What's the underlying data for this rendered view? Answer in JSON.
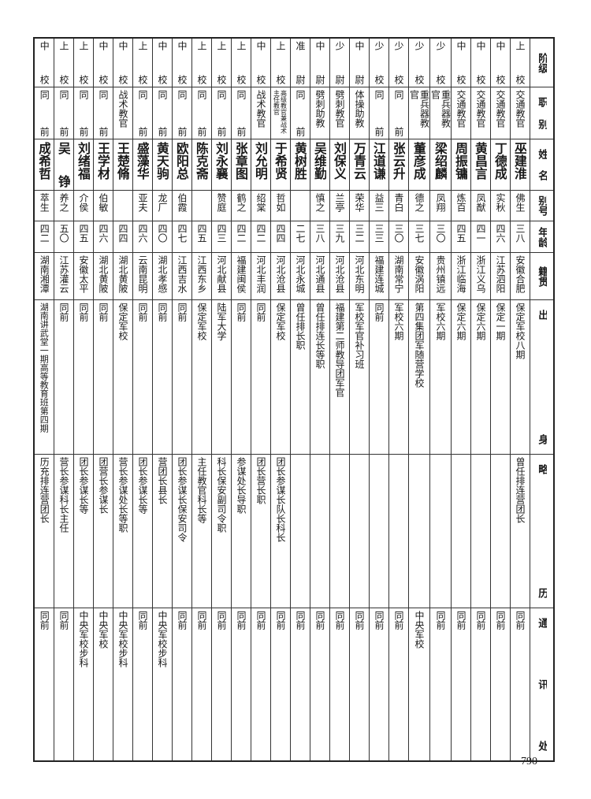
{
  "header": [
    "阶级",
    "职别",
    "姓名",
    "别号",
    "年龄",
    "籍贯",
    "出身",
    "略历",
    "通讯处"
  ],
  "people": [
    {
      "rank": "中校",
      "post": "同前",
      "name": "成希哲",
      "alias": "萃生",
      "age": "四二",
      "native": "湖南湘潭",
      "origin": "湖南讲武堂一期高等教育班第四期",
      "career": "历充排连营团长",
      "contact": "同前"
    },
    {
      "rank": "上校",
      "post": "同前",
      "name": "吴铮",
      "alias": "养之",
      "age": "五〇",
      "native": "江苏灌云",
      "origin": "同前",
      "career": "营长参谋科长主任",
      "contact": "同前"
    },
    {
      "rank": "上校",
      "post": "同前",
      "name": "刘绪福",
      "alias": "介侯",
      "age": "四五",
      "native": "安徽太平",
      "origin": "同前",
      "career": "团长参谋长等",
      "contact": "中央军校步科"
    },
    {
      "rank": "中校",
      "post": "同前",
      "name": "王学材",
      "alias": "伯敏",
      "age": "四六",
      "native": "湖北黄陂",
      "origin": "同前",
      "career": "团营长参谋长",
      "contact": "中央军校"
    },
    {
      "rank": "中校",
      "post": "战术教官",
      "name": "王楚脩",
      "alias": "",
      "age": "四四",
      "native": "湖北黄陂",
      "origin": "保定军校",
      "career": "营长参谋处长等职",
      "contact": "中央军校步科"
    },
    {
      "rank": "上校",
      "post": "同前",
      "name": "盛藻华",
      "alias": "亚夫",
      "age": "四六",
      "native": "云南昆明",
      "origin": "同前",
      "career": "团长参谋长等",
      "contact": "同前"
    },
    {
      "rank": "中校",
      "post": "同前",
      "name": "黄天驹",
      "alias": "龙厂",
      "age": "四〇",
      "native": "湖北孝感",
      "origin": "同前",
      "career": "营团长县长",
      "contact": "中央军校步科"
    },
    {
      "rank": "中校",
      "post": "同前",
      "name": "欧阳总",
      "alias": "伯霞",
      "age": "四七",
      "native": "江西吉水",
      "origin": "同前",
      "career": "团长参谋长保安司令",
      "contact": "同前"
    },
    {
      "rank": "上校",
      "post": "同前",
      "name": "陈克斋",
      "alias": "",
      "age": "四五",
      "native": "江西东乡",
      "origin": "保定军校",
      "career": "主任教官科长等",
      "contact": "同前"
    },
    {
      "rank": "上校",
      "post": "同前",
      "name": "刘永襄",
      "alias": "赞庭",
      "age": "四三",
      "native": "河北献县",
      "origin": "陆军大学",
      "career": "科长保安副司令职",
      "contact": "同前"
    },
    {
      "rank": "上校",
      "post": "同前",
      "name": "张章图",
      "alias": "鹤之",
      "age": "四二",
      "native": "福建闽侯",
      "origin": "同前",
      "career": "参谋处长导职",
      "contact": "同前"
    },
    {
      "rank": "中校",
      "post": "战术教官",
      "name": "刘允明",
      "alias": "绍棠",
      "age": "四二",
      "native": "河北丰润",
      "origin": "同前",
      "career": "团长营长职",
      "contact": "同前"
    },
    {
      "rank": "上校",
      "post": "高级教官兼战术主任教官",
      "name": "于希贤",
      "alias": "哲如",
      "age": "四四",
      "native": "河北沧县",
      "origin": "保定军校",
      "career": "团长参谋长队长科长",
      "contact": "同前"
    },
    {
      "rank": "准尉",
      "post": "同前",
      "name": "黄树胜",
      "alias": "",
      "age": "二七",
      "native": "河北永城",
      "origin": "曾任排长职",
      "career": "",
      "contact": "同前"
    },
    {
      "rank": "中尉",
      "post": "劈刺助教",
      "name": "吴维勤",
      "alias": "慎之",
      "age": "三八",
      "native": "河北通县",
      "origin": "曾任排连长等职",
      "career": "",
      "contact": "同前"
    },
    {
      "rank": "少尉",
      "post": "劈刺教官",
      "name": "刘保义",
      "alias": "兰亭",
      "age": "三九",
      "native": "河北沧县",
      "origin": "福建第二师教导团军官",
      "career": "",
      "contact": "同前"
    },
    {
      "rank": "中尉",
      "post": "体操助教",
      "name": "万青云",
      "alias": "荣华",
      "age": "三二",
      "native": "河北东明",
      "origin": "军校军官补习班",
      "career": "",
      "contact": "同前"
    },
    {
      "rank": "少校",
      "post": "同前",
      "name": "江道谦",
      "alias": "益三",
      "age": "三三",
      "native": "福建连城",
      "origin": "同前",
      "career": "",
      "contact": "同前"
    },
    {
      "rank": "少校",
      "post": "同前",
      "name": "张云升",
      "alias": "青白",
      "age": "三〇",
      "native": "湖南常宁",
      "origin": "军校六期",
      "career": "",
      "contact": "同前"
    },
    {
      "rank": "少校",
      "post": "重兵器教官",
      "name": "董彦成",
      "alias": "德之",
      "age": "三七",
      "native": "安徽涡阳",
      "origin": "第四集团军随营学校",
      "career": "",
      "contact": "中央军校"
    },
    {
      "rank": "少校",
      "post": "重兵器教官",
      "name": "梁绍麟",
      "alias": "凤翔",
      "age": "三〇",
      "native": "贵州镇远",
      "origin": "军校六期",
      "career": "",
      "contact": "同前"
    },
    {
      "rank": "中校",
      "post": "交通教官",
      "name": "周振镛",
      "alias": "炼百",
      "age": "四五",
      "native": "浙江临海",
      "origin": "保定六期",
      "career": "",
      "contact": "同前"
    },
    {
      "rank": "中校",
      "post": "交通教官",
      "name": "黄昌言",
      "alias": "凤猷",
      "age": "四一",
      "native": "浙江义乌",
      "origin": "保定六期",
      "career": "",
      "contact": "同前"
    },
    {
      "rank": "中校",
      "post": "交通教官",
      "name": "丁德成",
      "alias": "实秋",
      "age": "四六",
      "native": "江苏泗阳",
      "origin": "保定一期",
      "career": "",
      "contact": "同前"
    },
    {
      "rank": "上校",
      "post": "交通教官",
      "name": "巫建淮",
      "alias": "佛生",
      "age": "三八",
      "native": "安徽合肥",
      "origin": "保定军校八期",
      "career": "曾任排连营团长",
      "contact": "同前"
    }
  ],
  "page_number": "790"
}
